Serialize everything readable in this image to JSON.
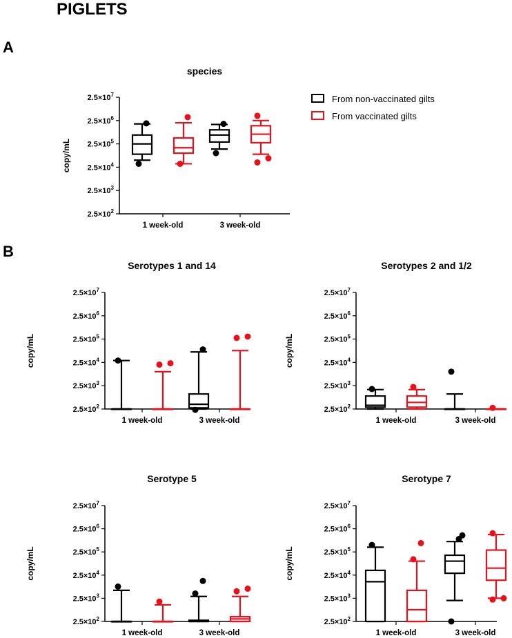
{
  "figure_title": "PIGLETS",
  "panel_a_label": "A",
  "panel_b_label": "B",
  "legend": [
    {
      "label": "From non-vaccinated gilts",
      "color": "#000000"
    },
    {
      "label": "From vaccinated gilts",
      "color": "#e8101a"
    }
  ],
  "chart_data": [
    {
      "type": "box",
      "title": "species",
      "ylabel": "copy/mL",
      "yscale": "log10",
      "yticks": [
        250,
        2500,
        25000,
        250000,
        2500000,
        25000000
      ],
      "ytick_labels": [
        {
          "base": "2.5×10",
          "exp": "2"
        },
        {
          "base": "2.5×10",
          "exp": "3"
        },
        {
          "base": "2.5×10",
          "exp": "4"
        },
        {
          "base": "2.5×10",
          "exp": "5"
        },
        {
          "base": "2.5×10",
          "exp": "6"
        },
        {
          "base": "2.5×10",
          "exp": "7"
        }
      ],
      "categories": [
        "1 week-old",
        "3 week-old"
      ],
      "series": [
        {
          "name": "From non-vaccinated gilts",
          "color": "#000000",
          "boxes": [
            {
              "whisker_low": 50000,
              "q1": 90000,
              "median": 250000,
              "q3": 600000,
              "whisker_high": 1800000,
              "outliers": [
                35000,
                1900000
              ]
            },
            {
              "whisker_low": 150000,
              "q1": 300000,
              "median": 600000,
              "q3": 1000000,
              "whisker_high": 1700000,
              "outliers": [
                100000,
                1800000
              ]
            }
          ]
        },
        {
          "name": "From vaccinated gilts",
          "color": "#e8101a",
          "boxes": [
            {
              "whisker_low": 35000,
              "q1": 100000,
              "median": 170000,
              "q3": 450000,
              "whisker_high": 2000000,
              "outliers": [
                35000,
                3500000
              ]
            },
            {
              "whisker_low": 90000,
              "q1": 280000,
              "median": 650000,
              "q3": 1500000,
              "whisker_high": 2500000,
              "outliers": [
                40000,
                60000,
                4000000
              ]
            }
          ]
        }
      ]
    },
    {
      "type": "box",
      "title": "Serotypes 1 and 14",
      "ylabel": "copy/mL",
      "yscale": "log10",
      "yticks": [
        250,
        2500,
        25000,
        250000,
        2500000,
        25000000
      ],
      "ytick_labels": [
        {
          "base": "2.5×10",
          "exp": "2"
        },
        {
          "base": "2.5×10",
          "exp": "3"
        },
        {
          "base": "2.5×10",
          "exp": "4"
        },
        {
          "base": "2.5×10",
          "exp": "5"
        },
        {
          "base": "2.5×10",
          "exp": "6"
        },
        {
          "base": "2.5×10",
          "exp": "7"
        }
      ],
      "categories": [
        "1 week-old",
        "3 week-old"
      ],
      "series": [
        {
          "name": "From non-vaccinated gilts",
          "color": "#000000",
          "boxes": [
            {
              "whisker_low": 250,
              "q1": 250,
              "median": 250,
              "q3": 250,
              "whisker_high": 30000,
              "outliers": [
                30000
              ]
            },
            {
              "whisker_low": 250,
              "q1": 280,
              "median": 400,
              "q3": 1100,
              "whisker_high": 70000,
              "outliers": [
                230,
                90000
              ]
            }
          ]
        },
        {
          "name": "From vaccinated gilts",
          "color": "#e8101a",
          "boxes": [
            {
              "whisker_low": 250,
              "q1": 250,
              "median": 250,
              "q3": 250,
              "whisker_high": 10000,
              "outliers": [
                20000,
                23000
              ]
            },
            {
              "whisker_low": 250,
              "q1": 250,
              "median": 250,
              "q3": 250,
              "whisker_high": 80000,
              "outliers": [
                280000,
                320000
              ]
            }
          ]
        }
      ]
    },
    {
      "type": "box",
      "title": "Serotypes 2 and 1/2",
      "ylabel": "copy/mL",
      "yscale": "log10",
      "yticks": [
        250,
        2500,
        25000,
        250000,
        2500000,
        25000000
      ],
      "ytick_labels": [
        {
          "base": "2.5×10",
          "exp": "2"
        },
        {
          "base": "2.5×10",
          "exp": "3"
        },
        {
          "base": "2.5×10",
          "exp": "4"
        },
        {
          "base": "2.5×10",
          "exp": "5"
        },
        {
          "base": "2.5×10",
          "exp": "6"
        },
        {
          "base": "2.5×10",
          "exp": "7"
        }
      ],
      "categories": [
        "1 week-old",
        "3 week-old"
      ],
      "series": [
        {
          "name": "From non-vaccinated gilts",
          "color": "#000000",
          "boxes": [
            {
              "whisker_low": 250,
              "q1": 300,
              "median": 360,
              "q3": 900,
              "whisker_high": 1700,
              "outliers": [
                1800
              ]
            },
            {
              "whisker_low": 250,
              "q1": 250,
              "median": 250,
              "q3": 250,
              "whisker_high": 1100,
              "outliers": [
                10000
              ]
            }
          ]
        },
        {
          "name": "From vaccinated gilts",
          "color": "#e8101a",
          "boxes": [
            {
              "whisker_low": 250,
              "q1": 300,
              "median": 480,
              "q3": 900,
              "whisker_high": 1700,
              "outliers": [
                2200
              ]
            },
            {
              "whisker_low": 250,
              "q1": 250,
              "median": 250,
              "q3": 250,
              "whisker_high": 250,
              "outliers": [
                280
              ]
            }
          ]
        }
      ]
    },
    {
      "type": "box",
      "title": "Serotype 5",
      "ylabel": "copy/mL",
      "yscale": "log10",
      "yticks": [
        250,
        2500,
        25000,
        250000,
        2500000,
        25000000
      ],
      "ytick_labels": [
        {
          "base": "2.5×10",
          "exp": "2"
        },
        {
          "base": "2.5×10",
          "exp": "3"
        },
        {
          "base": "2.5×10",
          "exp": "4"
        },
        {
          "base": "2.5×10",
          "exp": "5"
        },
        {
          "base": "2.5×10",
          "exp": "6"
        },
        {
          "base": "2.5×10",
          "exp": "7"
        }
      ],
      "categories": [
        "1 week-old",
        "3 week-old"
      ],
      "series": [
        {
          "name": "From non-vaccinated gilts",
          "color": "#000000",
          "boxes": [
            {
              "whisker_low": 250,
              "q1": 250,
              "median": 250,
              "q3": 250,
              "whisker_high": 5500,
              "outliers": [
                8000
              ]
            },
            {
              "whisker_low": 250,
              "q1": 250,
              "median": 250,
              "q3": 280,
              "whisker_high": 3000,
              "outliers": [
                4000,
                14000
              ]
            }
          ]
        },
        {
          "name": "From vaccinated gilts",
          "color": "#e8101a",
          "boxes": [
            {
              "whisker_low": 250,
              "q1": 250,
              "median": 250,
              "q3": 250,
              "whisker_high": 1300,
              "outliers": [
                1800
              ]
            },
            {
              "whisker_low": 250,
              "q1": 250,
              "median": 320,
              "q3": 400,
              "whisker_high": 3000,
              "outliers": [
                5000,
                6500
              ]
            }
          ]
        }
      ]
    },
    {
      "type": "box",
      "title": "Serotype 7",
      "ylabel": "copy/mL",
      "yscale": "log10",
      "yticks": [
        250,
        2500,
        25000,
        250000,
        2500000,
        25000000
      ],
      "ytick_labels": [
        {
          "base": "2.5×10",
          "exp": "2"
        },
        {
          "base": "2.5×10",
          "exp": "3"
        },
        {
          "base": "2.5×10",
          "exp": "4"
        },
        {
          "base": "2.5×10",
          "exp": "5"
        },
        {
          "base": "2.5×10",
          "exp": "6"
        },
        {
          "base": "2.5×10",
          "exp": "7"
        }
      ],
      "categories": [
        "1 week-old",
        "3 week-old"
      ],
      "series": [
        {
          "name": "From non-vaccinated gilts",
          "color": "#000000",
          "boxes": [
            {
              "whisker_low": 250,
              "q1": 250,
              "median": 13000,
              "q3": 40000,
              "whisker_high": 400000,
              "outliers": [
                500000
              ]
            },
            {
              "whisker_low": 2000,
              "q1": 30000,
              "median": 100000,
              "q3": 180000,
              "whisker_high": 700000,
              "outliers": [
                250,
                900000,
                1300000
              ]
            }
          ]
        },
        {
          "name": "From vaccinated gilts",
          "color": "#e8101a",
          "boxes": [
            {
              "whisker_low": 250,
              "q1": 250,
              "median": 800,
              "q3": 5500,
              "whisker_high": 100000,
              "outliers": [
                120000,
                600000
              ]
            },
            {
              "whisker_low": 2500,
              "q1": 15000,
              "median": 50000,
              "q3": 300000,
              "whisker_high": 1400000,
              "outliers": [
                2200,
                2500,
                1600000
              ]
            }
          ]
        }
      ]
    }
  ]
}
